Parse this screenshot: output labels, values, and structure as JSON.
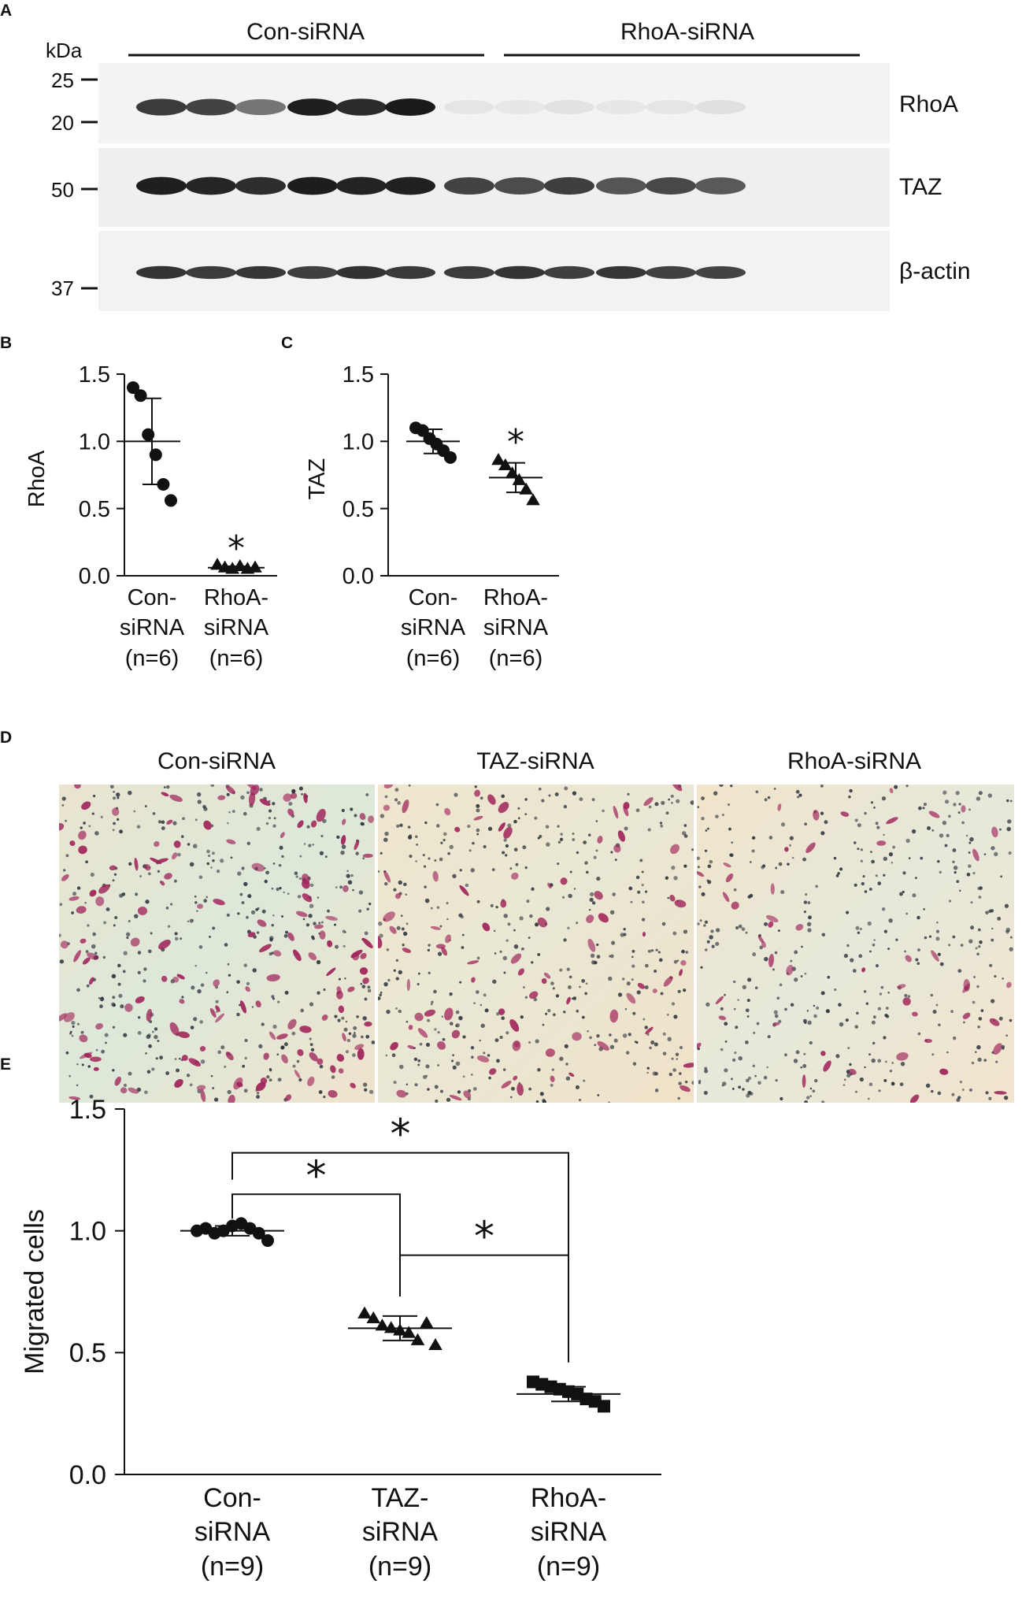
{
  "panel_labels": {
    "a": "A",
    "b": "B",
    "c": "C",
    "d": "D",
    "e": "E"
  },
  "blot": {
    "groups": [
      "Con-siRNA",
      "RhoA-siRNA"
    ],
    "kda_unit": "kDa",
    "markers": [
      "25",
      "20",
      "50",
      "37"
    ],
    "rows": [
      {
        "name": "RhoA",
        "intensities": [
          0.82,
          0.78,
          0.55,
          0.95,
          0.9,
          0.97,
          0.03,
          0.02,
          0.04,
          0.02,
          0.03,
          0.05
        ]
      },
      {
        "name": "TAZ",
        "intensities": [
          0.95,
          0.92,
          0.88,
          0.96,
          0.93,
          0.94,
          0.78,
          0.74,
          0.8,
          0.7,
          0.76,
          0.68
        ]
      },
      {
        "name": "β-actin",
        "intensities": [
          0.85,
          0.82,
          0.84,
          0.8,
          0.86,
          0.83,
          0.82,
          0.85,
          0.8,
          0.84,
          0.79,
          0.78
        ]
      }
    ]
  },
  "microscopy": {
    "titles": [
      "Con-siRNA",
      "TAZ-siRNA",
      "RhoA-siRNA"
    ],
    "cell_density": [
      1.0,
      0.6,
      0.33
    ],
    "colors": {
      "stain": "#a0245a",
      "nuclei": "#2a2f3a",
      "bg_warm": "#efe6cf",
      "bg_cool": "#dfe8d8"
    }
  },
  "chart_data": [
    {
      "panel": "B",
      "type": "scatter",
      "ylabel": "RhoA",
      "ylim": [
        0,
        1.5
      ],
      "yticks": [
        "0.0",
        "0.5",
        "1.0",
        "1.5"
      ],
      "categories": [
        {
          "lines": [
            "Con-",
            "siRNA",
            "(n=6)"
          ]
        },
        {
          "lines": [
            "RhoA-",
            "siRNA",
            "(n=6)"
          ]
        }
      ],
      "series": [
        {
          "marker": "circle",
          "values": [
            1.4,
            1.34,
            1.05,
            0.9,
            0.68,
            0.56
          ],
          "mean": 1.0,
          "sd": 0.32
        },
        {
          "marker": "triangle",
          "values": [
            0.08,
            0.06,
            0.05,
            0.07,
            0.05,
            0.06
          ],
          "mean": 0.06,
          "sd": 0.01
        }
      ],
      "annotations": [
        {
          "text": "*",
          "category": 1,
          "y": 0.26
        }
      ]
    },
    {
      "panel": "C",
      "type": "scatter",
      "ylabel": "TAZ",
      "ylim": [
        0,
        1.5
      ],
      "yticks": [
        "0.0",
        "0.5",
        "1.0",
        "1.5"
      ],
      "categories": [
        {
          "lines": [
            "Con-",
            "siRNA",
            "(n=6)"
          ]
        },
        {
          "lines": [
            "RhoA-",
            "siRNA",
            "(n=6)"
          ]
        }
      ],
      "series": [
        {
          "marker": "circle",
          "values": [
            1.1,
            1.08,
            1.02,
            0.98,
            0.93,
            0.88
          ],
          "mean": 1.0,
          "sd": 0.09
        },
        {
          "marker": "triangle",
          "values": [
            0.86,
            0.82,
            0.76,
            0.71,
            0.64,
            0.56
          ],
          "mean": 0.73,
          "sd": 0.11
        }
      ],
      "annotations": [
        {
          "text": "*",
          "category": 1,
          "y": 1.05
        }
      ]
    },
    {
      "panel": "E",
      "type": "scatter",
      "ylabel": "Migrated cells",
      "ylim": [
        0,
        1.5
      ],
      "yticks": [
        "0.0",
        "0.5",
        "1.0",
        "1.5"
      ],
      "categories": [
        {
          "lines": [
            "Con-",
            "siRNA",
            "(n=9)"
          ]
        },
        {
          "lines": [
            "TAZ-",
            "siRNA",
            "(n=9)"
          ]
        },
        {
          "lines": [
            "RhoA-",
            "siRNA",
            "(n=9)"
          ]
        }
      ],
      "series": [
        {
          "marker": "circle",
          "values": [
            1.0,
            1.01,
            0.99,
            1.0,
            1.02,
            1.03,
            1.01,
            0.99,
            0.96
          ],
          "mean": 1.0,
          "sd": 0.02
        },
        {
          "marker": "triangle",
          "values": [
            0.66,
            0.64,
            0.61,
            0.6,
            0.59,
            0.58,
            0.55,
            0.62,
            0.53
          ],
          "mean": 0.6,
          "sd": 0.05
        },
        {
          "marker": "square",
          "values": [
            0.38,
            0.37,
            0.36,
            0.35,
            0.34,
            0.33,
            0.31,
            0.3,
            0.28
          ],
          "mean": 0.33,
          "sd": 0.03
        }
      ],
      "brackets": [
        {
          "from": 0,
          "to": 2,
          "y": 1.32,
          "drop_from": 1.21,
          "drop_to": 0.72,
          "text": "*"
        },
        {
          "from": 0,
          "to": 1,
          "y": 1.15,
          "drop_from": 1.05,
          "drop_to": 0.73,
          "text": "*"
        },
        {
          "from": 1,
          "to": 2,
          "y": 0.9,
          "drop_from": 0.82,
          "drop_to": 0.46,
          "text": "*"
        }
      ]
    }
  ]
}
